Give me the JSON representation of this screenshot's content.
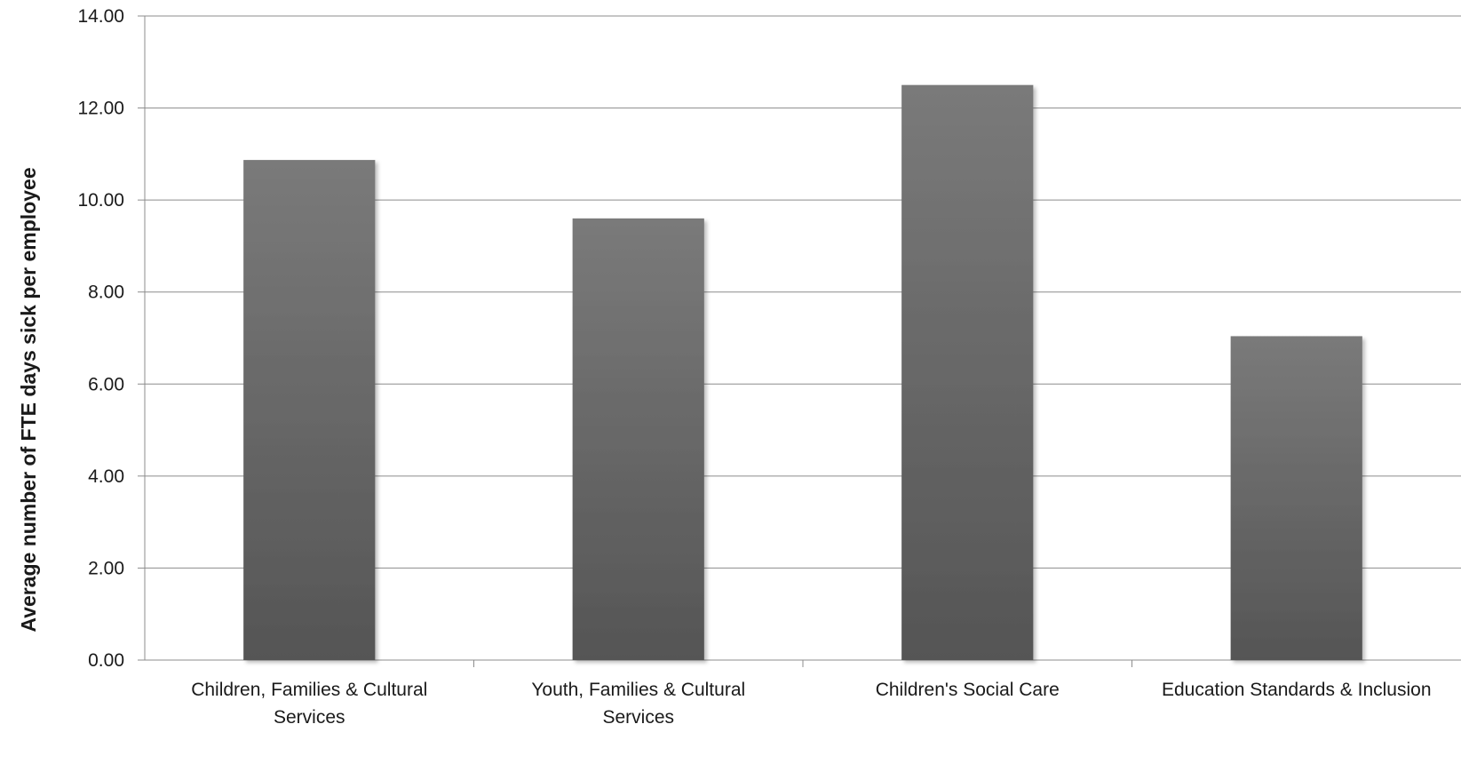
{
  "chart_data": {
    "type": "bar",
    "title": "",
    "xlabel": "",
    "ylabel": "Average number of FTE days sick per employee",
    "ylim": [
      0,
      14
    ],
    "yticks": [
      0,
      2,
      4,
      6,
      8,
      10,
      12,
      14
    ],
    "ytick_format_decimals": 2,
    "grid": true,
    "legend": "none",
    "categories": [
      [
        "Children, Families & Cultural",
        "Services"
      ],
      [
        "Youth, Families & Cultural",
        "Services"
      ],
      [
        "Children's Social Care"
      ],
      [
        "Education Standards & Inclusion"
      ]
    ],
    "values": [
      10.87,
      9.6,
      12.5,
      7.04
    ],
    "bar_color_top": "#7a7a7a",
    "bar_color_bottom": "#555555"
  }
}
